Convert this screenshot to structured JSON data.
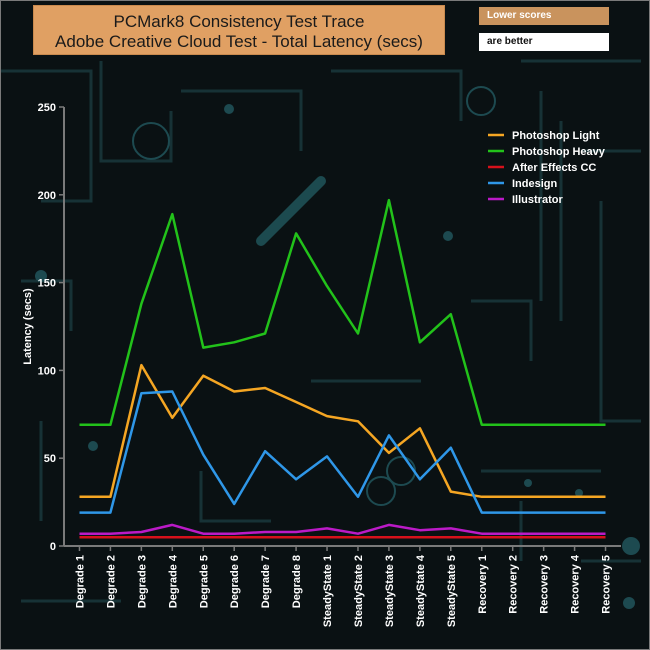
{
  "header": {
    "title_line1": "PCMark8 Consistency Test Trace",
    "title_line2": "Adobe Creative Cloud Test -  Total Latency (secs)",
    "note_line1": "Lower scores",
    "note_line2": "are better"
  },
  "chart_data": {
    "type": "line",
    "title": "PCMark8 Consistency Test Trace Adobe Creative Cloud Test -  Total Latency (secs)",
    "ylabel": "Latency (secs)",
    "xlabel": "",
    "ylim": [
      0,
      250
    ],
    "yticks": [
      0,
      50,
      100,
      150,
      200,
      250
    ],
    "grid": false,
    "legend_position": "top-right",
    "categories": [
      "Degrade 1",
      "Degrade 2",
      "Degrade 3",
      "Degrade 4",
      "Degrade 5",
      "Degrade 6",
      "Degrade 7",
      "Degrade 8",
      "SteadyState 1",
      "SteadyState 2",
      "SteadyState 3",
      "SteadyState 4",
      "SteadyState 5",
      "Recovery 1",
      "Recovery 2",
      "Recovery 3",
      "Recovery 4",
      "Recovery 5"
    ],
    "series": [
      {
        "name": "Photoshop Light",
        "color": "#f5a623",
        "values": [
          28,
          28,
          103,
          73,
          97,
          88,
          90,
          82,
          74,
          71,
          53,
          67,
          31,
          28,
          28,
          28,
          28,
          28
        ]
      },
      {
        "name": " Photoshop Heavy",
        "color": "#22c21a",
        "values": [
          69,
          69,
          138,
          189,
          113,
          116,
          121,
          178,
          148,
          121,
          197,
          116,
          132,
          69,
          69,
          69,
          69,
          69
        ]
      },
      {
        "name": "After Effects CC",
        "color": "#d6111b",
        "values": [
          5,
          5,
          5,
          5,
          5,
          5,
          5,
          5,
          5,
          5,
          5,
          5,
          5,
          5,
          5,
          5,
          5,
          5
        ]
      },
      {
        "name": "Indesign",
        "color": "#2f97e8",
        "values": [
          19,
          19,
          87,
          88,
          52,
          24,
          54,
          38,
          51,
          28,
          63,
          38,
          56,
          19,
          19,
          19,
          19,
          19
        ]
      },
      {
        "name": "Illustrator",
        "color": "#bb1ac7",
        "values": [
          7,
          7,
          8,
          12,
          7,
          7,
          8,
          8,
          10,
          7,
          12,
          9,
          10,
          7,
          7,
          7,
          7,
          7
        ]
      }
    ]
  }
}
